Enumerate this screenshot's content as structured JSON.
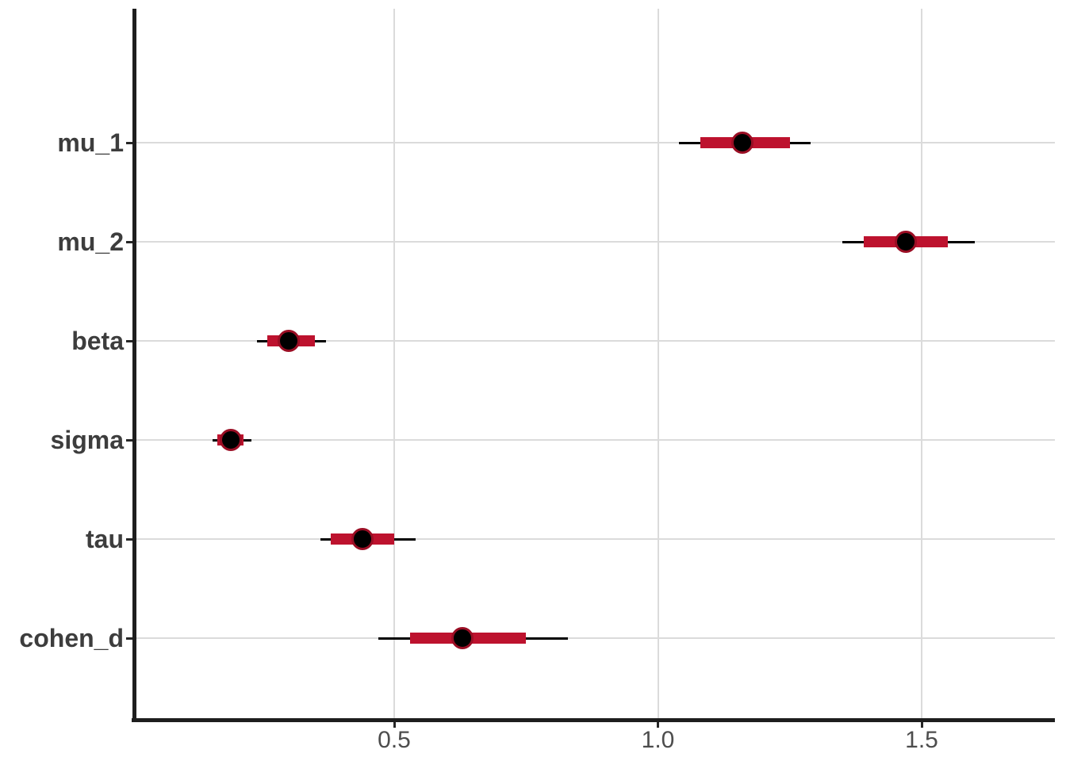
{
  "chart_data": {
    "type": "interval",
    "subtype": "forest-plot-posterior-intervals",
    "title": "",
    "orientation": "horizontal",
    "x_axis": {
      "ticks": [
        0.5,
        1.0,
        1.5
      ],
      "tick_labels": [
        "0.5",
        "1.0",
        "1.5"
      ],
      "range": [
        0.005,
        1.753
      ]
    },
    "y_categories": [
      "mu_1",
      "mu_2",
      "beta",
      "sigma",
      "tau",
      "cohen_d"
    ],
    "series": [
      {
        "name": "mu_1",
        "point": 1.16,
        "inner_interval": [
          1.08,
          1.25
        ],
        "outer_interval": [
          1.04,
          1.29
        ]
      },
      {
        "name": "mu_2",
        "point": 1.47,
        "inner_interval": [
          1.39,
          1.55
        ],
        "outer_interval": [
          1.35,
          1.6
        ]
      },
      {
        "name": "beta",
        "point": 0.3,
        "inner_interval": [
          0.26,
          0.35
        ],
        "outer_interval": [
          0.24,
          0.37
        ]
      },
      {
        "name": "sigma",
        "point": 0.19,
        "inner_interval": [
          0.165,
          0.215
        ],
        "outer_interval": [
          0.155,
          0.23
        ]
      },
      {
        "name": "tau",
        "point": 0.44,
        "inner_interval": [
          0.38,
          0.5
        ],
        "outer_interval": [
          0.36,
          0.54
        ]
      },
      {
        "name": "cohen_d",
        "point": 0.63,
        "inner_interval": [
          0.53,
          0.75
        ],
        "outer_interval": [
          0.47,
          0.83
        ]
      }
    ],
    "legend": null,
    "grid": {
      "vertical_major": true,
      "horizontal_row_lines": true,
      "minor": false
    }
  },
  "colors": {
    "background": "#FFFFFF",
    "inner_bar": "#BD122E",
    "outer_line": "#000000",
    "point_fill": "#000000",
    "point_ring": "#9A0E24",
    "gridline": "#DBDBDB",
    "axis_line": "#1E1E1E",
    "x_label_text": "#4D4D4D",
    "y_label_text": "#3D3D3D"
  }
}
